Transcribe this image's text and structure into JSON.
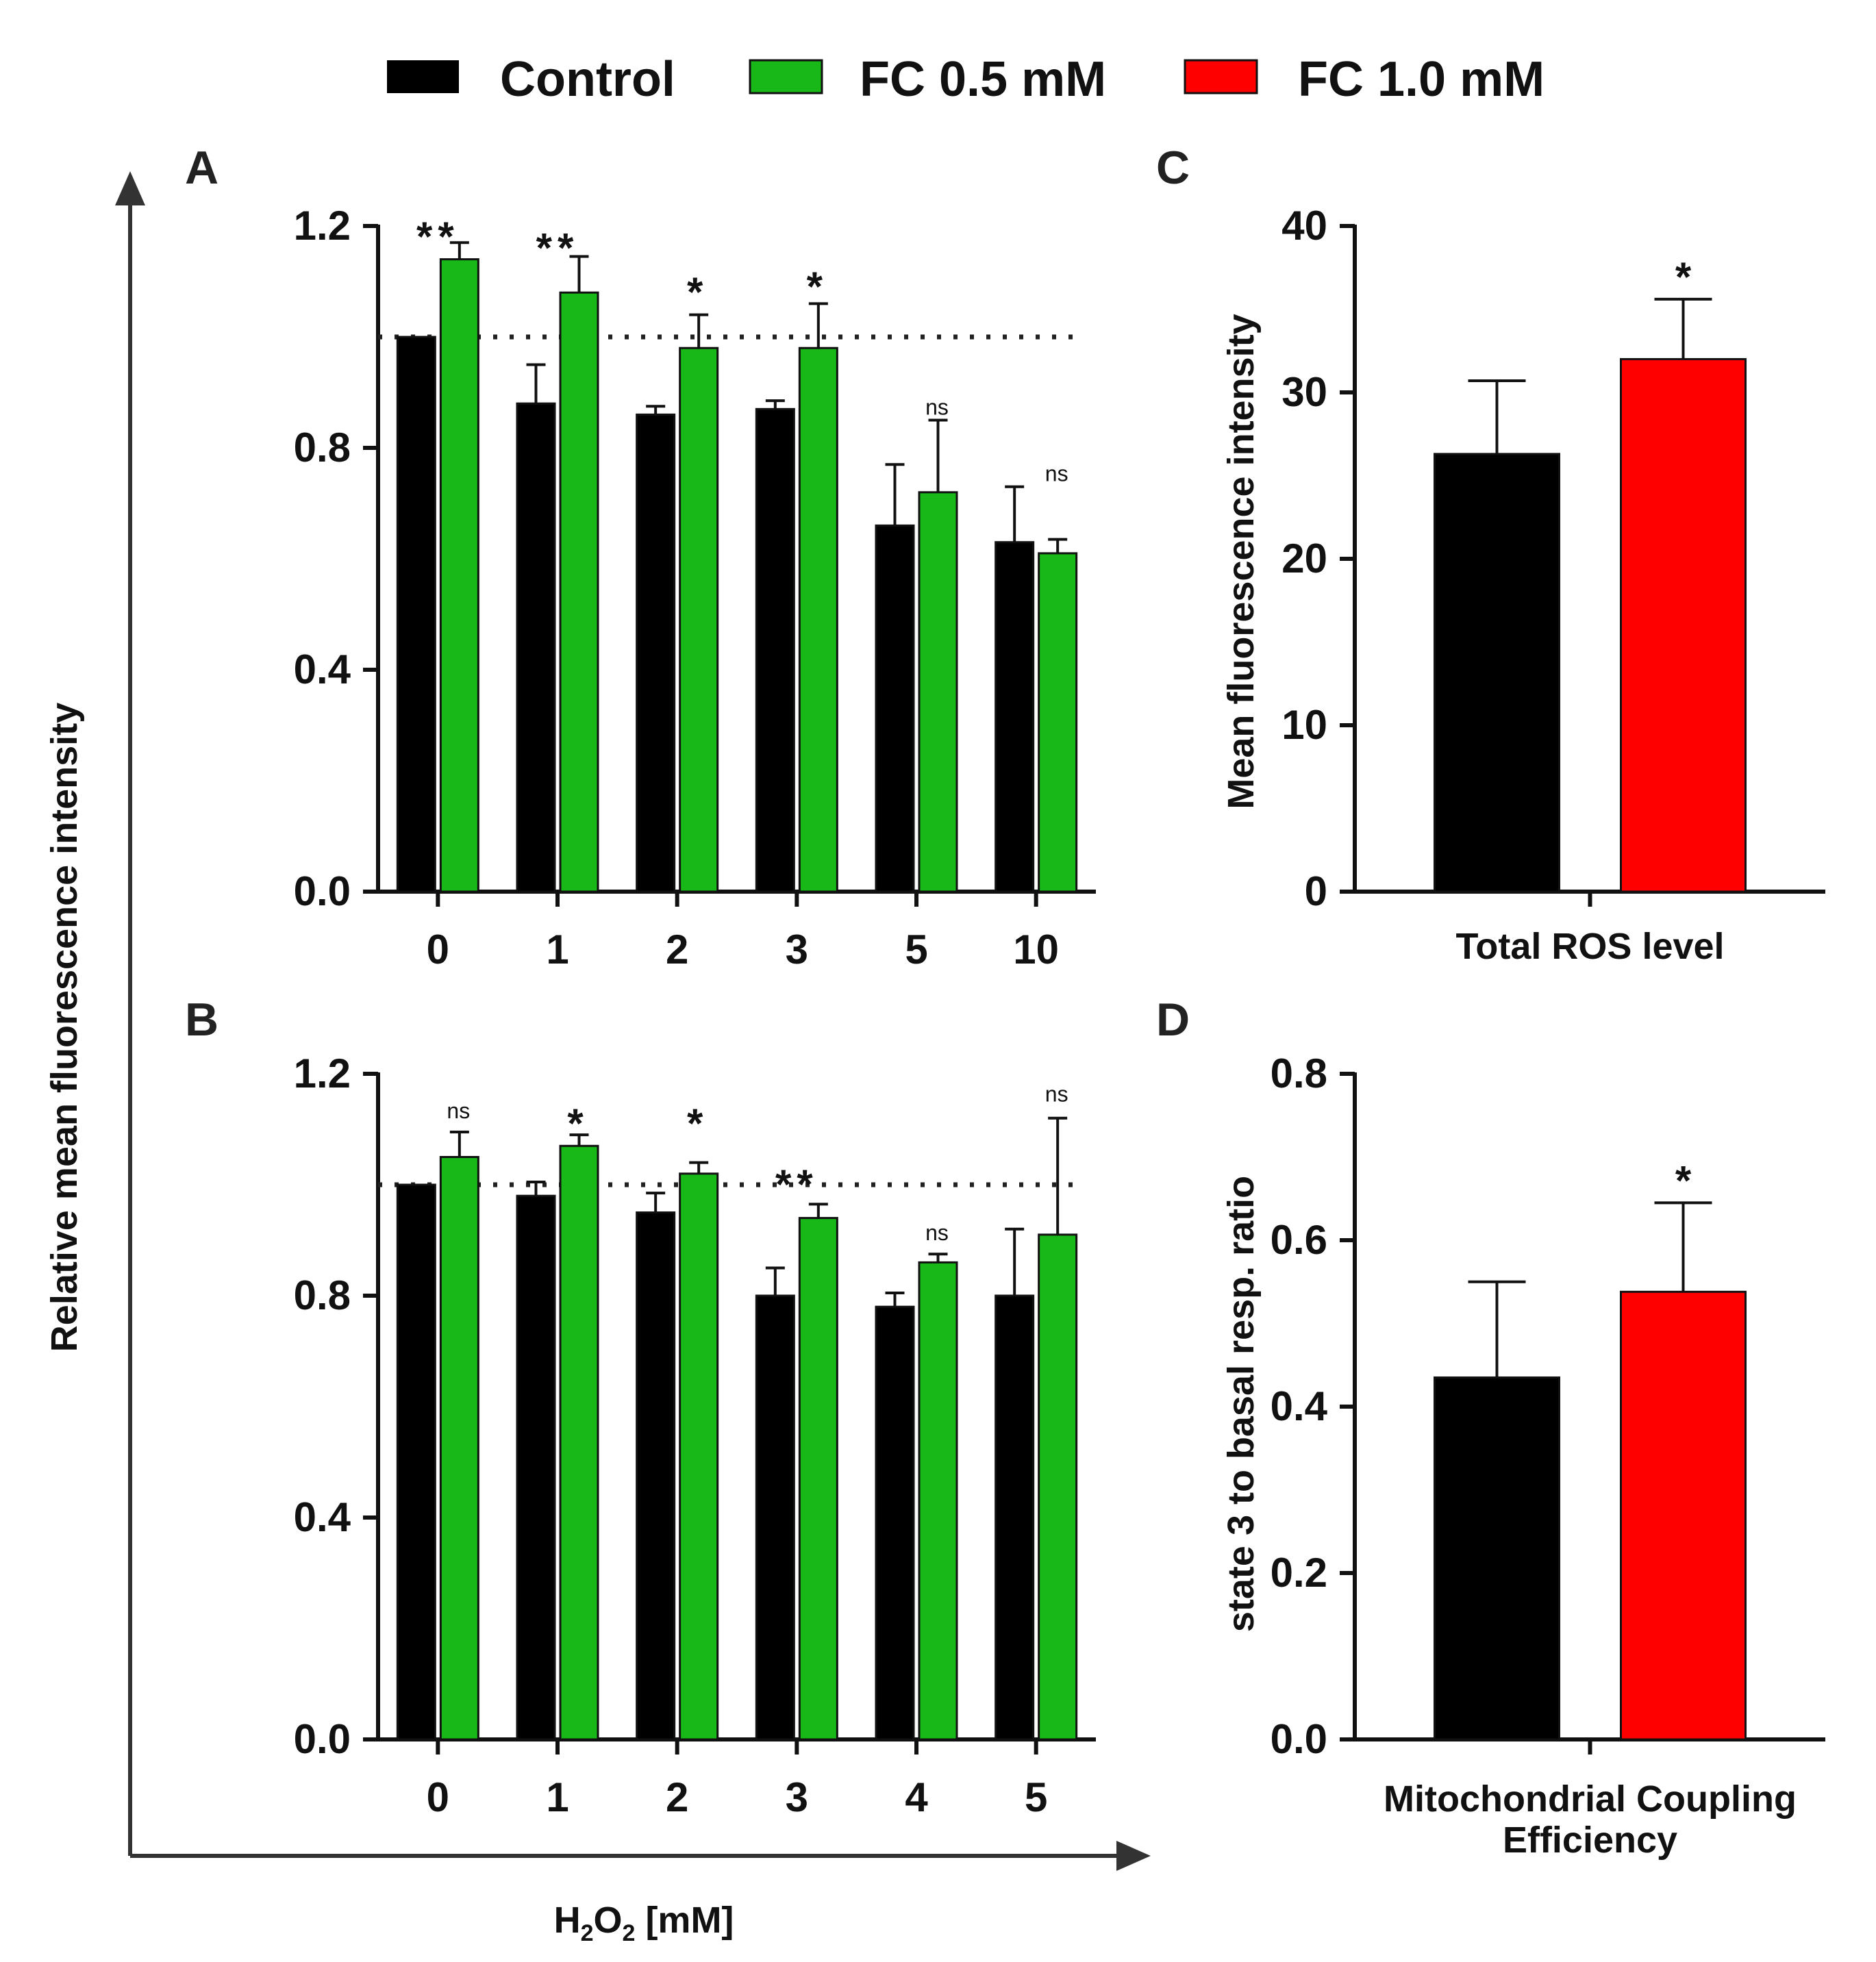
{
  "colors": {
    "control": "#000000",
    "fc05": "#18b818",
    "fc10": "#ff0000",
    "axis": "#111111"
  },
  "legend": {
    "items": [
      {
        "label": "Control",
        "color": "#000000"
      },
      {
        "label": "FC 0.5 mM",
        "color": "#18b818"
      },
      {
        "label": "FC 1.0 mM",
        "color": "#ff0000"
      }
    ]
  },
  "shared_axes": {
    "ylabel": "Relative mean fluorescence intensity",
    "xlabel_main": "H",
    "xlabel_sub1": "2",
    "xlabel_mid": "O",
    "xlabel_sub2": "2",
    "xlabel_tail": " [mM]"
  },
  "chart_data": [
    {
      "panel": "A",
      "type": "bar",
      "ylim": [
        0,
        1.2
      ],
      "yticks": [
        "0.0",
        "0.4",
        "0.8",
        "1.2"
      ],
      "ytick_values": [
        0,
        0.4,
        0.8,
        1.2
      ],
      "reference_line": 1.0,
      "categories": [
        "0",
        "1",
        "2",
        "3",
        "5",
        "10"
      ],
      "series": [
        {
          "name": "Control",
          "values": [
            1.0,
            0.88,
            0.86,
            0.87,
            0.66,
            0.63
          ],
          "errors": [
            0.0,
            0.07,
            0.015,
            0.015,
            0.11,
            0.1
          ]
        },
        {
          "name": "FC 0.5 mM",
          "values": [
            1.14,
            1.08,
            0.98,
            0.98,
            0.72,
            0.61
          ],
          "errors": [
            0.03,
            0.065,
            0.06,
            0.08,
            0.13,
            0.025
          ]
        }
      ],
      "significance": [
        "**",
        "**",
        "*",
        "*",
        "ns",
        "ns"
      ],
      "significance_height": [
        1.18,
        1.16,
        1.08,
        1.09,
        0.86,
        0.74
      ]
    },
    {
      "panel": "B",
      "type": "bar",
      "ylim": [
        0,
        1.2
      ],
      "yticks": [
        "0.0",
        "0.4",
        "0.8",
        "1.2"
      ],
      "ytick_values": [
        0,
        0.4,
        0.8,
        1.2
      ],
      "reference_line": 1.0,
      "categories": [
        "0",
        "1",
        "2",
        "3",
        "4",
        "5"
      ],
      "series": [
        {
          "name": "Control",
          "values": [
            1.0,
            0.98,
            0.95,
            0.8,
            0.78,
            0.8
          ],
          "errors": [
            0.0,
            0.025,
            0.035,
            0.05,
            0.025,
            0.12
          ]
        },
        {
          "name": "FC 0.5 mM",
          "values": [
            1.05,
            1.07,
            1.02,
            0.94,
            0.86,
            0.91
          ],
          "errors": [
            0.045,
            0.02,
            0.02,
            0.025,
            0.015,
            0.21
          ]
        }
      ],
      "significance": [
        "ns",
        "*",
        "*",
        "**",
        "ns",
        "ns"
      ],
      "significance_height": [
        1.12,
        1.11,
        1.11,
        1.0,
        0.9,
        1.15
      ]
    },
    {
      "panel": "C",
      "type": "bar",
      "ylabel": "Mean fluorescence intensity",
      "xlabel": "Total ROS level",
      "ylim": [
        0,
        40
      ],
      "yticks": [
        "0",
        "10",
        "20",
        "30",
        "40"
      ],
      "ytick_values": [
        0,
        10,
        20,
        30,
        40
      ],
      "categories": [
        "Control",
        "FC 1.0 mM"
      ],
      "values": [
        26.3,
        32.0
      ],
      "errors": [
        4.4,
        3.6
      ],
      "significance": [
        "",
        "*"
      ]
    },
    {
      "panel": "D",
      "type": "bar",
      "ylabel": "state 3 to basal resp. ratio",
      "xlabel_line1": "Mitochondrial Coupling",
      "xlabel_line2": "Efficiency",
      "ylim": [
        0,
        0.8
      ],
      "yticks": [
        "0.0",
        "0.2",
        "0.4",
        "0.6",
        "0.8"
      ],
      "ytick_values": [
        0,
        0.2,
        0.4,
        0.6,
        0.8
      ],
      "categories": [
        "Control",
        "FC 1.0 mM"
      ],
      "values": [
        0.435,
        0.538
      ],
      "errors": [
        0.115,
        0.107
      ],
      "significance": [
        "",
        "*"
      ]
    }
  ]
}
